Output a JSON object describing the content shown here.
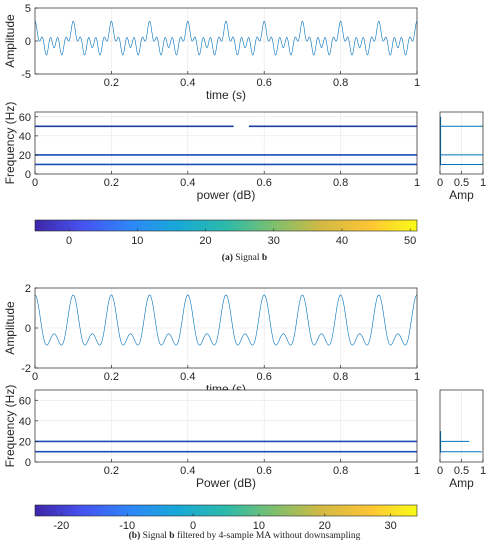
{
  "captions": {
    "a": {
      "tag": "(a)",
      "pre": " Signal ",
      "bold": "b",
      "post": ""
    },
    "b": {
      "tag": "(b)",
      "pre": " Signal ",
      "bold": "b",
      "post": " filtered by 4-sample MA without downsampling"
    }
  },
  "chart_data": [
    {
      "id": "a-time",
      "type": "line",
      "title": "",
      "xlabel": "time (s)",
      "ylabel": "Amplitude",
      "xlim": [
        0,
        1
      ],
      "ylim": [
        -5,
        5
      ],
      "xticks": [
        0.2,
        0.4,
        0.6,
        0.8,
        1
      ],
      "xtick_labels": [
        "0.2",
        "0.4",
        "0.6",
        "0.8",
        "1"
      ],
      "yticks": [
        -5,
        0,
        5
      ],
      "ytick_labels": [
        "-5",
        "0",
        "5"
      ],
      "grid": true,
      "series": [
        {
          "components": [
            {
              "freq": 10,
              "amp": 1
            },
            {
              "freq": 20,
              "amp": 1
            },
            {
              "freq": 50,
              "amp": 1
            }
          ],
          "color": "#1f77b4"
        }
      ]
    },
    {
      "id": "a-spec",
      "type": "heatmap",
      "xlabel": "power (dB)",
      "ylabel": "Frequency (Hz)",
      "xlim": [
        0,
        1
      ],
      "ylim": [
        0,
        65
      ],
      "xticks": [
        0,
        0.2,
        0.4,
        0.6,
        0.8,
        1
      ],
      "xtick_labels": [
        "0",
        "0.2",
        "0.4",
        "0.6",
        "0.8",
        "1"
      ],
      "yticks": [
        0,
        20,
        40,
        60
      ],
      "ytick_labels": [
        "0",
        "20",
        "40",
        "60"
      ],
      "grid": true,
      "lines": [
        {
          "freq": 50,
          "gap": [
            0.52,
            0.56
          ]
        },
        {
          "freq": 20,
          "gap": []
        },
        {
          "freq": 10,
          "gap": []
        }
      ]
    },
    {
      "id": "a-amp",
      "type": "line",
      "xlabel": "Amp",
      "ylabel": "",
      "xlim": [
        0,
        1
      ],
      "ylim": [
        0,
        65
      ],
      "xticks": [
        0,
        0.5,
        1
      ],
      "xtick_labels": [
        "0",
        "0.5",
        "1"
      ],
      "grid": true,
      "peaks": [
        {
          "freq": 10,
          "amp": 1
        },
        {
          "freq": 20,
          "amp": 1
        },
        {
          "freq": 50,
          "amp": 1
        }
      ]
    },
    {
      "id": "a-colorbar",
      "type": "colorbar",
      "range": [
        -5,
        51
      ],
      "ticks": [
        0,
        10,
        20,
        30,
        40,
        50
      ],
      "tick_labels": [
        "0",
        "10",
        "20",
        "30",
        "40",
        "50"
      ],
      "colormap": [
        "#3e26a8",
        "#4653f0",
        "#2e87f7",
        "#17a9d6",
        "#2cbaaa",
        "#7ebf6e",
        "#d2b943",
        "#fcc536",
        "#f9fb15"
      ]
    },
    {
      "id": "b-time",
      "type": "line",
      "xlabel": "time (s)",
      "ylabel": "Amplitude",
      "xlim": [
        0,
        1
      ],
      "ylim": [
        -2,
        2
      ],
      "xticks": [
        0,
        0.2,
        0.4,
        0.6,
        0.8,
        1
      ],
      "xtick_labels": [
        "0",
        "0.2",
        "0.4",
        "0.6",
        "0.8",
        "1"
      ],
      "yticks": [
        -2,
        0,
        2
      ],
      "ytick_labels": [
        "-2",
        "0",
        "2"
      ],
      "grid": true,
      "series": [
        {
          "components": [
            {
              "freq": 10,
              "amp": 0.97
            },
            {
              "freq": 20,
              "amp": 0.68
            }
          ],
          "color": "#1f77b4"
        }
      ]
    },
    {
      "id": "b-spec",
      "type": "heatmap",
      "xlabel": "Power (dB)",
      "ylabel": "Frequency (Hz)",
      "xlim": [
        0,
        1
      ],
      "ylim": [
        0,
        70
      ],
      "xticks": [
        0.2,
        0.4,
        0.6,
        0.8,
        1
      ],
      "xtick_labels": [
        "0.2",
        "0.4",
        "0.6",
        "0.8",
        "1"
      ],
      "yticks": [
        0,
        20,
        40,
        60
      ],
      "ytick_labels": [
        "0",
        "20",
        "40",
        "60"
      ],
      "grid": true,
      "lines": [
        {
          "freq": 20,
          "gap": []
        },
        {
          "freq": 10,
          "gap": []
        }
      ]
    },
    {
      "id": "b-amp",
      "type": "line",
      "xlabel": "Amp",
      "ylabel": "",
      "xlim": [
        0,
        1
      ],
      "ylim": [
        0,
        70
      ],
      "xticks": [
        0,
        0.5,
        1
      ],
      "xtick_labels": [
        "0",
        "0.5",
        "1"
      ],
      "grid": true,
      "peaks": [
        {
          "freq": 10,
          "amp": 0.97
        },
        {
          "freq": 20,
          "amp": 0.68
        }
      ]
    },
    {
      "id": "b-colorbar",
      "type": "colorbar",
      "range": [
        -24,
        34
      ],
      "ticks": [
        -20,
        -10,
        0,
        10,
        20,
        30
      ],
      "tick_labels": [
        "-20",
        "-10",
        "0",
        "10",
        "20",
        "30"
      ],
      "colormap": [
        "#3e26a8",
        "#4653f0",
        "#2e87f7",
        "#17a9d6",
        "#2cbaaa",
        "#7ebf6e",
        "#d2b943",
        "#fcc536",
        "#f9fb15"
      ]
    }
  ]
}
